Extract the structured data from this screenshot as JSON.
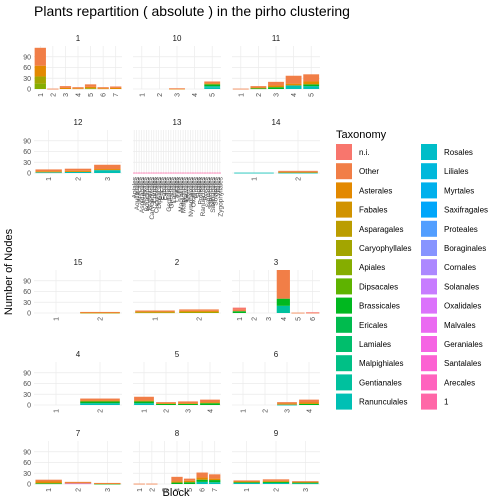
{
  "chart_data": {
    "type": "bar",
    "stacked": true,
    "faceted": true,
    "title": "Plants repartition ( absolute ) in the pirho clustering",
    "xlabel": "Block",
    "ylabel": "Number of Nodes",
    "ylim": [
      0,
      120
    ],
    "yticks": [
      0,
      30,
      60,
      90
    ],
    "grid": true,
    "legend_position": "right",
    "legend_title": "Taxonomy",
    "taxonomy": [
      {
        "name": "n.i.",
        "color": "#F8766D"
      },
      {
        "name": "Other",
        "color": "#F17E47"
      },
      {
        "name": "Asterales",
        "color": "#E38900"
      },
      {
        "name": "Fabales",
        "color": "#D19300"
      },
      {
        "name": "Asparagales",
        "color": "#BB9D00"
      },
      {
        "name": "Caryophyllales",
        "color": "#A3A500"
      },
      {
        "name": "Apiales",
        "color": "#85AD00"
      },
      {
        "name": "Dipsacales",
        "color": "#5EB300"
      },
      {
        "name": "Brassicales",
        "color": "#00B81F"
      },
      {
        "name": "Ericales",
        "color": "#00BB4E"
      },
      {
        "name": "Lamiales",
        "color": "#00BE6C"
      },
      {
        "name": "Malpighiales",
        "color": "#00C086"
      },
      {
        "name": "Gentianales",
        "color": "#00C19E"
      },
      {
        "name": "Ranunculales",
        "color": "#00C0B4"
      },
      {
        "name": "Rosales",
        "color": "#00BDC8"
      },
      {
        "name": "Liliales",
        "color": "#00B8DB"
      },
      {
        "name": "Myrtales",
        "color": "#00B0EC"
      },
      {
        "name": "Saxifragales",
        "color": "#00A6FA"
      },
      {
        "name": "Proteales",
        "color": "#529EFF"
      },
      {
        "name": "Boraginales",
        "color": "#8794FF"
      },
      {
        "name": "Cornales",
        "color": "#AC88FF"
      },
      {
        "name": "Solanales",
        "color": "#C77CFF"
      },
      {
        "name": "Oxalidales",
        "color": "#DB72FB"
      },
      {
        "name": "Malvales",
        "color": "#EA6AF1"
      },
      {
        "name": "Geraniales",
        "color": "#F564E3"
      },
      {
        "name": "Santalales",
        "color": "#FC61D2"
      },
      {
        "name": "Arecales",
        "color": "#FF63BE"
      },
      {
        "name": "1",
        "color": "#FF67A7"
      }
    ],
    "panels": [
      {
        "name": "1",
        "categories": [
          "1",
          "2",
          "3",
          "4",
          "5",
          "6",
          "7"
        ],
        "values": [
          {
            "Other": 50,
            "Asterales": 30,
            "Caryophyllales": 20,
            "Apiales": 15
          },
          {
            "Other": 1
          },
          {
            "Other": 5,
            "Asterales": 3
          },
          {
            "Other": 3,
            "Asterales": 2
          },
          {
            "Other": 7,
            "Asterales": 4,
            "Apiales": 2
          },
          {
            "Other": 3,
            "Asterales": 2
          },
          {
            "Other": 4,
            "Asterales": 3
          }
        ]
      },
      {
        "name": "10",
        "categories": [
          "1",
          "2",
          "3",
          "4",
          "5"
        ],
        "values": [
          {},
          {},
          {
            "Other": 1,
            "Asterales": 1
          },
          {},
          {
            "Other": 5,
            "Asterales": 3,
            "Brassicales": 5,
            "Gentianales": 3,
            "Ranunculales": 5
          }
        ]
      },
      {
        "name": "11",
        "categories": [
          "1",
          "2",
          "3",
          "4",
          "5"
        ],
        "values": [
          {
            "Other": 1
          },
          {
            "Other": 4,
            "Asterales": 2,
            "Brassicales": 2
          },
          {
            "Other": 10,
            "Asterales": 5,
            "Brassicales": 5
          },
          {
            "Other": 22,
            "Asterales": 5,
            "Ranunculales": 10
          },
          {
            "Other": 20,
            "Asterales": 8,
            "Brassicales": 5,
            "Ranunculales": 8
          }
        ]
      },
      {
        "name": "12",
        "categories": [
          "1",
          "2",
          "3"
        ],
        "values": [
          {
            "Other": 5,
            "Asterales": 3,
            "Ranunculales": 2
          },
          {
            "Other": 6,
            "Asterales": 3,
            "Ranunculales": 3
          },
          {
            "Other": 12,
            "Asterales": 3,
            "Ranunculales": 8
          }
        ]
      },
      {
        "name": "13",
        "categories": [
          "Apiales",
          "Aquifoliales",
          "Arecales",
          "Asparagales",
          "Asterales",
          "Boraginales",
          "Brassicales",
          "Caryophyllales",
          "Cornales",
          "Cucurbitales",
          "Dipsacales",
          "Ericales",
          "Fabales",
          "Fagales",
          "Gentianales",
          "Geraniales",
          "Lamiales",
          "Laurales",
          "Liliales",
          "Magnoliales",
          "Malpighiales",
          "Malvales",
          "Myrtales",
          "Nymphaeales",
          "Oxalidales",
          "Pinales",
          "Poales",
          "Proteales",
          "Ranunculales",
          "Rosales",
          "Santalales",
          "Sapindales",
          "Saxifragales",
          "Solanales",
          "Vitales",
          "Zygophyllales"
        ],
        "values": [
          {
            "1": 1
          },
          {
            "1": 1
          },
          {
            "1": 1
          },
          {
            "1": 1
          },
          {
            "1": 1
          },
          {
            "1": 1
          },
          {
            "1": 1
          },
          {
            "1": 1
          },
          {
            "1": 1
          },
          {
            "1": 1
          },
          {
            "1": 1
          },
          {
            "1": 1
          },
          {
            "1": 1
          },
          {
            "1": 1
          },
          {
            "1": 1
          },
          {
            "1": 1
          },
          {
            "1": 1
          },
          {
            "1": 1
          },
          {
            "1": 1
          },
          {
            "1": 1
          },
          {
            "1": 1
          },
          {
            "1": 1
          },
          {
            "1": 1
          },
          {
            "1": 1
          },
          {
            "1": 1
          },
          {
            "1": 1
          },
          {
            "1": 1
          },
          {
            "1": 1
          },
          {
            "1": 1
          },
          {
            "1": 1
          },
          {
            "1": 1
          },
          {
            "1": 1
          },
          {
            "1": 1
          },
          {
            "1": 1
          },
          {
            "1": 1
          },
          {
            "1": 1
          }
        ]
      },
      {
        "name": "14",
        "categories": [
          "1",
          "2"
        ],
        "values": [
          {
            "Ranunculales": 1
          },
          {
            "Other": 3,
            "Asterales": 2,
            "Ranunculales": 1
          }
        ]
      },
      {
        "name": "15",
        "categories": [
          "1",
          "2"
        ],
        "values": [
          {},
          {
            "Other": 1,
            "Asterales": 1,
            "Caryophyllales": 1
          }
        ]
      },
      {
        "name": "2",
        "categories": [
          "1",
          "2"
        ],
        "values": [
          {
            "Other": 3,
            "Asterales": 2,
            "Caryophyllales": 2
          },
          {
            "Other": 4,
            "Asterales": 3,
            "Caryophyllales": 3
          }
        ]
      },
      {
        "name": "3",
        "categories": [
          "1",
          "2",
          "3",
          "4",
          "5",
          "6"
        ],
        "values": [
          {
            "n.i.": 5,
            "Other": 5,
            "Brassicales": 5
          },
          {},
          {},
          {
            "Other": 80,
            "Brassicales": 20,
            "Gentianales": 20
          },
          {
            "Other": 1
          },
          {
            "n.i.": 1,
            "Other": 1
          }
        ]
      },
      {
        "name": "4",
        "categories": [
          "1",
          "2"
        ],
        "values": [
          {},
          {
            "Other": 5,
            "Asterales": 3,
            "Brassicales": 5,
            "Ranunculales": 5
          }
        ]
      },
      {
        "name": "5",
        "categories": [
          "1",
          "2",
          "3",
          "4"
        ],
        "values": [
          {
            "Other": 10,
            "Asterales": 3,
            "Brassicales": 5,
            "Ranunculales": 5
          },
          {
            "Other": 3,
            "Asterales": 2,
            "Brassicales": 3
          },
          {
            "Other": 5,
            "Asterales": 2,
            "Brassicales": 3
          },
          {
            "Other": 7,
            "Asterales": 3,
            "Brassicales": 5
          }
        ]
      },
      {
        "name": "6",
        "categories": [
          "1",
          "2",
          "3",
          "4"
        ],
        "values": [
          {},
          {},
          {
            "Other": 4,
            "Asterales": 3,
            "Ranunculales": 1
          },
          {
            "Other": 8,
            "Asterales": 4,
            "Brassicales": 3
          }
        ]
      },
      {
        "name": "7",
        "categories": [
          "1",
          "2",
          "3"
        ],
        "values": [
          {
            "Other": 5,
            "Asterales": 5,
            "Brassicales": 2
          },
          {
            "Other": 2,
            "Asterales": 2,
            "Oxalidales": 2
          },
          {
            "Other": 1,
            "Asterales": 1,
            "Brassicales": 1
          }
        ]
      },
      {
        "name": "8",
        "categories": [
          "1",
          "2",
          "3",
          "4",
          "5",
          "6",
          "7"
        ],
        "values": [
          {
            "Other": 1
          },
          {
            "Other": 1
          },
          {},
          {
            "Other": 12,
            "Asterales": 4,
            "Brassicales": 4
          },
          {
            "Other": 6,
            "Asterales": 4,
            "Brassicales": 5
          },
          {
            "Other": 14,
            "Asterales": 6,
            "Brassicales": 6,
            "Ranunculales": 6
          },
          {
            "Other": 12,
            "Asterales": 4,
            "Brassicales": 6,
            "Ranunculales": 5
          }
        ]
      },
      {
        "name": "9",
        "categories": [
          "1",
          "2",
          "3"
        ],
        "values": [
          {
            "Other": 3,
            "Asterales": 2,
            "Brassicales": 2,
            "Ranunculales": 3
          },
          {
            "Other": 4,
            "Asterales": 3,
            "Brassicales": 3,
            "Ranunculales": 3
          },
          {
            "Other": 2,
            "Asterales": 2,
            "Brassicales": 2,
            "Ranunculales": 2
          }
        ]
      }
    ]
  }
}
